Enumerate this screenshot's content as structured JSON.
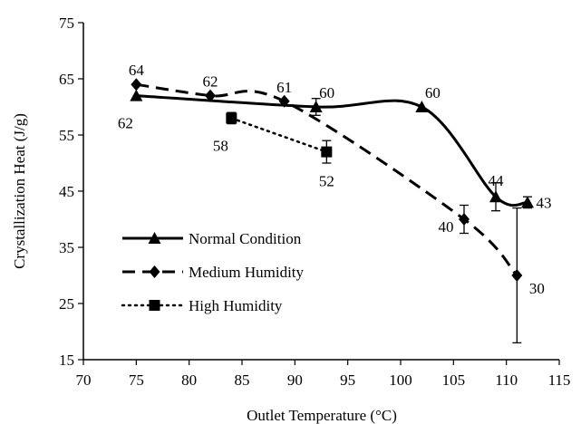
{
  "chart_data": {
    "type": "line",
    "xlabel": "Outlet Temperature (°C)",
    "ylabel": "Crystallization Heat (J/g)",
    "xlim": [
      70,
      115
    ],
    "ylim": [
      15,
      75
    ],
    "x_ticks": [
      70,
      75,
      80,
      85,
      90,
      95,
      100,
      105,
      110,
      115
    ],
    "y_ticks": [
      15,
      25,
      35,
      45,
      55,
      65,
      75
    ],
    "grid": false,
    "legend_position": "left",
    "series": [
      {
        "name": "Normal Condition",
        "line_style": "solid",
        "marker": "triangle",
        "smooth": true,
        "x": [
          75,
          92,
          102,
          109,
          112
        ],
        "y": [
          62,
          60,
          60,
          44,
          43
        ],
        "error": [
          0,
          1.5,
          0,
          2.5,
          1
        ],
        "labels": [
          "62",
          "60",
          "60",
          "44",
          "43"
        ]
      },
      {
        "name": "Medium Humidity",
        "line_style": "dashed",
        "marker": "diamond",
        "smooth": true,
        "x": [
          75,
          82,
          89,
          106,
          111
        ],
        "y": [
          64,
          62,
          61,
          40,
          30
        ],
        "error": [
          0,
          0,
          0,
          2.5,
          12
        ],
        "labels": [
          "64",
          "62",
          "61",
          "40",
          "30"
        ]
      },
      {
        "name": "High Humidity",
        "line_style": "dotted",
        "marker": "square",
        "smooth": false,
        "x": [
          84,
          93
        ],
        "y": [
          58,
          52
        ],
        "error": [
          1,
          2
        ],
        "labels": [
          "58",
          "52"
        ]
      }
    ]
  }
}
